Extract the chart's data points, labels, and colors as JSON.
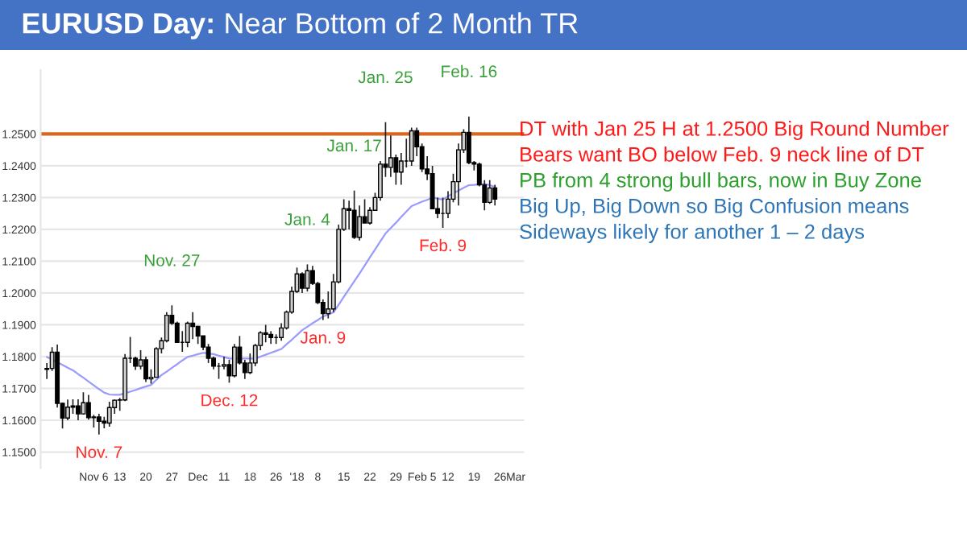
{
  "chart_data": {
    "type": "candlestick",
    "title": "EURUSD Day: Near Bottom of 2 Month TR",
    "categories": [
      null,
      null,
      null,
      null,
      null,
      null,
      null,
      null,
      null,
      "Nov 6",
      null,
      null,
      null,
      null,
      "13",
      null,
      null,
      null,
      null,
      "20",
      null,
      null,
      null,
      null,
      "27",
      null,
      null,
      null,
      null,
      "Dec",
      null,
      null,
      null,
      null,
      "11",
      null,
      null,
      null,
      null,
      "18",
      null,
      null,
      null,
      null,
      "26",
      null,
      null,
      null,
      "'18",
      null,
      null,
      null,
      "8",
      null,
      null,
      null,
      null,
      "15",
      null,
      null,
      null,
      null,
      "22",
      null,
      null,
      null,
      null,
      "29",
      null,
      null,
      null,
      null,
      "Feb 5",
      null,
      null,
      null,
      null,
      "12",
      null,
      null,
      null,
      null,
      "19",
      null,
      null,
      null,
      null,
      "26",
      null,
      null,
      "Mar"
    ],
    "ohlc": [
      [
        1.176,
        1.178,
        1.173,
        1.1763
      ],
      [
        1.1763,
        1.183,
        1.1755,
        1.1814
      ],
      [
        1.1814,
        1.1838,
        1.164,
        1.1653
      ],
      [
        1.1653,
        1.1655,
        1.1574,
        1.1607
      ],
      [
        1.1607,
        1.1665,
        1.16,
        1.1641
      ],
      [
        1.1641,
        1.1666,
        1.162,
        1.1645
      ],
      [
        1.1645,
        1.1666,
        1.16,
        1.162
      ],
      [
        1.162,
        1.1688,
        1.1618,
        1.1655
      ],
      [
        1.1655,
        1.168,
        1.1602,
        1.1608
      ],
      [
        1.1608,
        1.1617,
        1.1577,
        1.161
      ],
      [
        1.161,
        1.162,
        1.1555,
        1.1597
      ],
      [
        1.1597,
        1.1611,
        1.1575,
        1.1591
      ],
      [
        1.1591,
        1.1658,
        1.158,
        1.164
      ],
      [
        1.164,
        1.1665,
        1.162,
        1.1663
      ],
      [
        1.1663,
        1.167,
        1.163,
        1.1664
      ],
      [
        1.1664,
        1.1808,
        1.166,
        1.1795
      ],
      [
        1.1795,
        1.1862,
        1.178,
        1.1795
      ],
      [
        1.1795,
        1.18,
        1.1758,
        1.177
      ],
      [
        1.177,
        1.182,
        1.176,
        1.179
      ],
      [
        1.179,
        1.18,
        1.172,
        1.173
      ],
      [
        1.173,
        1.176,
        1.1715,
        1.1735
      ],
      [
        1.1735,
        1.183,
        1.1735,
        1.1825
      ],
      [
        1.1825,
        1.186,
        1.181,
        1.185
      ],
      [
        1.185,
        1.194,
        1.1845,
        1.193
      ],
      [
        1.193,
        1.1961,
        1.19,
        1.1905
      ],
      [
        1.1905,
        1.191,
        1.1845,
        1.1845
      ],
      [
        1.1845,
        1.188,
        1.1815,
        1.1845
      ],
      [
        1.1845,
        1.191,
        1.183,
        1.1905
      ],
      [
        1.1905,
        1.194,
        1.1855,
        1.1895
      ],
      [
        1.1895,
        1.1897,
        1.184,
        1.1865
      ],
      [
        1.1865,
        1.1866,
        1.182,
        1.183
      ],
      [
        1.183,
        1.184,
        1.178,
        1.1795
      ],
      [
        1.1795,
        1.18,
        1.176,
        1.177
      ],
      [
        1.177,
        1.178,
        1.173,
        1.177
      ],
      [
        1.177,
        1.18,
        1.176,
        1.1775
      ],
      [
        1.1775,
        1.179,
        1.1718,
        1.174
      ],
      [
        1.174,
        1.184,
        1.1735,
        1.183
      ],
      [
        1.183,
        1.1865,
        1.1775,
        1.178
      ],
      [
        1.178,
        1.179,
        1.173,
        1.175
      ],
      [
        1.175,
        1.181,
        1.1745,
        1.178
      ],
      [
        1.178,
        1.184,
        1.177,
        1.1835
      ],
      [
        1.1835,
        1.188,
        1.182,
        1.1875
      ],
      [
        1.1875,
        1.19,
        1.1845,
        1.187
      ],
      [
        1.187,
        1.188,
        1.184,
        1.186
      ],
      [
        1.186,
        1.187,
        1.184,
        1.186
      ],
      [
        1.186,
        1.1905,
        1.185,
        1.189
      ],
      [
        1.189,
        1.1945,
        1.1885,
        1.194
      ],
      [
        1.194,
        1.202,
        1.1935,
        1.2005
      ],
      [
        1.2005,
        1.208,
        1.2,
        1.206
      ],
      [
        1.206,
        1.2065,
        1.2,
        1.2015
      ],
      [
        1.2015,
        1.209,
        1.2005,
        1.207
      ],
      [
        1.207,
        1.2085,
        1.2025,
        1.203
      ],
      [
        1.203,
        1.2035,
        1.1965,
        1.197
      ],
      [
        1.197,
        1.198,
        1.1915,
        1.1935
      ],
      [
        1.1935,
        1.2005,
        1.192,
        1.195
      ],
      [
        1.195,
        1.206,
        1.194,
        1.2035
      ],
      [
        1.2035,
        1.2215,
        1.203,
        1.22
      ],
      [
        1.22,
        1.2295,
        1.2195,
        1.2265
      ],
      [
        1.2265,
        1.229,
        1.22,
        1.226
      ],
      [
        1.226,
        1.2322,
        1.217,
        1.2175
      ],
      [
        1.2175,
        1.2275,
        1.2165,
        1.224
      ],
      [
        1.224,
        1.2295,
        1.222,
        1.222
      ],
      [
        1.222,
        1.227,
        1.2215,
        1.226
      ],
      [
        1.226,
        1.2315,
        1.226,
        1.23
      ],
      [
        1.23,
        1.2415,
        1.229,
        1.2405
      ],
      [
        1.2405,
        1.2537,
        1.2365,
        1.2395
      ],
      [
        1.2395,
        1.2495,
        1.2365,
        1.2425
      ],
      [
        1.2425,
        1.2435,
        1.234,
        1.238
      ],
      [
        1.238,
        1.244,
        1.234,
        1.2415
      ],
      [
        1.2415,
        1.2485,
        1.2395,
        1.2415
      ],
      [
        1.2415,
        1.252,
        1.24,
        1.251
      ],
      [
        1.251,
        1.252,
        1.243,
        1.246
      ],
      [
        1.246,
        1.247,
        1.238,
        1.239
      ],
      [
        1.239,
        1.243,
        1.2355,
        1.2375
      ],
      [
        1.2375,
        1.24,
        1.2265,
        1.2265
      ],
      [
        1.2265,
        1.23,
        1.2235,
        1.225
      ],
      [
        1.225,
        1.23,
        1.2205,
        1.225
      ],
      [
        1.225,
        1.232,
        1.2235,
        1.2295
      ],
      [
        1.2295,
        1.2375,
        1.2285,
        1.235
      ],
      [
        1.235,
        1.247,
        1.2275,
        1.245
      ],
      [
        1.245,
        1.2515,
        1.244,
        1.2505
      ],
      [
        1.2505,
        1.2555,
        1.2405,
        1.241
      ],
      [
        1.241,
        1.2415,
        1.2385,
        1.2405
      ],
      [
        1.2405,
        1.241,
        1.2335,
        1.234
      ],
      [
        1.234,
        1.2355,
        1.226,
        1.2285
      ],
      [
        1.2285,
        1.2355,
        1.228,
        1.233
      ],
      [
        1.233,
        1.234,
        1.2275,
        1.2295
      ],
      null,
      null,
      null,
      null
    ],
    "series": [
      {
        "type": "line",
        "color": "#9a9aff",
        "values": [
          1.1799,
          1.1791,
          1.1782,
          1.1774,
          1.1765,
          1.1757,
          1.1745,
          1.1734,
          1.1722,
          1.171,
          1.1698,
          1.1687,
          1.1681,
          1.168,
          1.168,
          1.1685,
          1.169,
          1.1695,
          1.1701,
          1.1706,
          1.1711,
          1.1727,
          1.1742,
          1.1753,
          1.1765,
          1.1776,
          1.1788,
          1.1799,
          1.1803,
          1.1808,
          1.1812,
          1.181,
          1.1808,
          1.1803,
          1.1799,
          1.1794,
          1.1794,
          1.1794,
          1.1794,
          1.1794,
          1.1794,
          1.18,
          1.1806,
          1.1812,
          1.1818,
          1.1824,
          1.1839,
          1.1853,
          1.1868,
          1.1883,
          1.1894,
          1.1905,
          1.1915,
          1.1926,
          1.1932,
          1.1939,
          1.1963,
          1.1988,
          1.2012,
          1.2037,
          1.2061,
          1.2086,
          1.2112,
          1.2137,
          1.2162,
          1.2187,
          1.2204,
          1.2221,
          1.2239,
          1.2256,
          1.2273,
          1.228,
          1.2287,
          1.2293,
          1.23,
          1.2297,
          1.2294,
          1.2304,
          1.2314,
          1.2322,
          1.2331,
          1.2339,
          1.234,
          1.2342,
          1.2343,
          1.2339,
          1.2334,
          null,
          null,
          null,
          null
        ]
      }
    ],
    "ylim": [
      1.145,
      1.27
    ],
    "yticks": [
      {
        "value": 1.15,
        "label": "1.1500"
      },
      {
        "value": 1.16,
        "label": "1.1600"
      },
      {
        "value": 1.17,
        "label": "1.1700"
      },
      {
        "value": 1.18,
        "label": "1.1800"
      },
      {
        "value": 1.19,
        "label": "1.1900"
      },
      {
        "value": 1.2,
        "label": "1.2000"
      },
      {
        "value": 1.21,
        "label": "1.2100"
      },
      {
        "value": 1.22,
        "label": "1.2200"
      },
      {
        "value": 1.23,
        "label": "1.2300"
      },
      {
        "value": 1.24,
        "label": "1.2400"
      },
      {
        "value": 1.25,
        "label": "1.2500"
      }
    ],
    "grid": "y",
    "ref_lines": [
      {
        "axis": "y",
        "value": 1.25,
        "color": "#d9661f",
        "line_style": "solid"
      }
    ],
    "annotations": [
      {
        "text": "Nov. 7",
        "y": 1.1555
      },
      {
        "text": "Nov. 27",
        "y": 1.1961
      },
      {
        "text": "Dec. 12",
        "y": 1.1718
      },
      {
        "text": "Jan. 4",
        "y": 1.209
      },
      {
        "text": "Jan. 9",
        "y": 1.1915
      },
      {
        "text": "Jan. 17",
        "y": 1.2322
      },
      {
        "text": "Jan. 25",
        "y": 1.2537
      },
      {
        "text": "Feb. 9",
        "y": 1.2205
      },
      {
        "text": "Feb. 16",
        "y": 1.2555
      },
      "DT with Jan 25 H at 1.2500 Big Round Number",
      "Bears want BO below Feb. 9 neck line of DT",
      "PB from 4 strong bull bars, now in Buy Zone",
      "Big Up, Big Down so Big Confusion means",
      "Sideways likely for another 1 – 2 days"
    ]
  }
}
